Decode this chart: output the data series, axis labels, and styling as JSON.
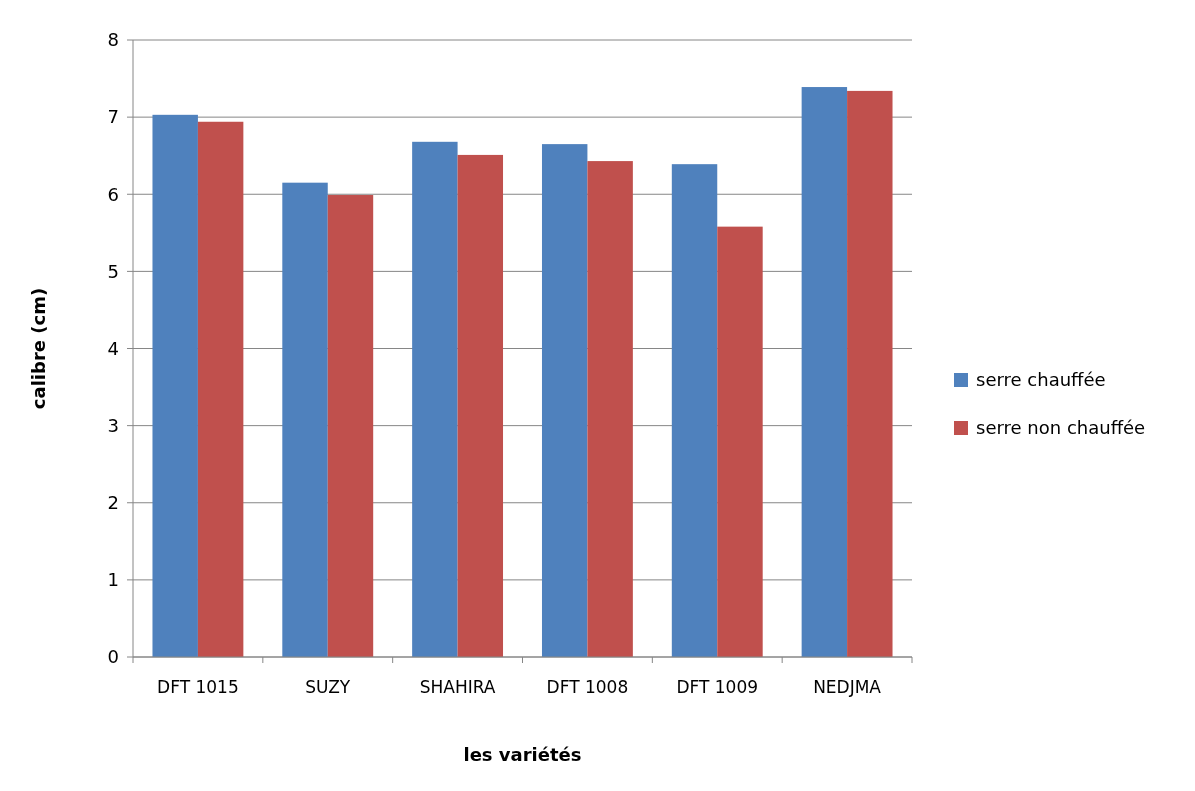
{
  "chart_data": {
    "type": "bar",
    "xlabel": "les variétés",
    "ylabel": "calibre (cm)",
    "categories": [
      "DFT 1015",
      "SUZY",
      "SHAHIRA",
      "DFT 1008",
      "DFT 1009",
      "NEDJMA"
    ],
    "series": [
      {
        "name": "serre chauffée",
        "color": "#4f81bd",
        "values": [
          7.03,
          6.15,
          6.68,
          6.65,
          6.39,
          7.39
        ]
      },
      {
        "name": "serre non chauffée",
        "color": "#c0504d",
        "values": [
          6.94,
          5.99,
          6.51,
          6.43,
          5.58,
          7.34
        ]
      }
    ],
    "ylim": [
      0,
      8
    ],
    "yticks": [
      0,
      1,
      2,
      3,
      4,
      5,
      6,
      7,
      8
    ],
    "grid": "y",
    "legend": "right"
  }
}
